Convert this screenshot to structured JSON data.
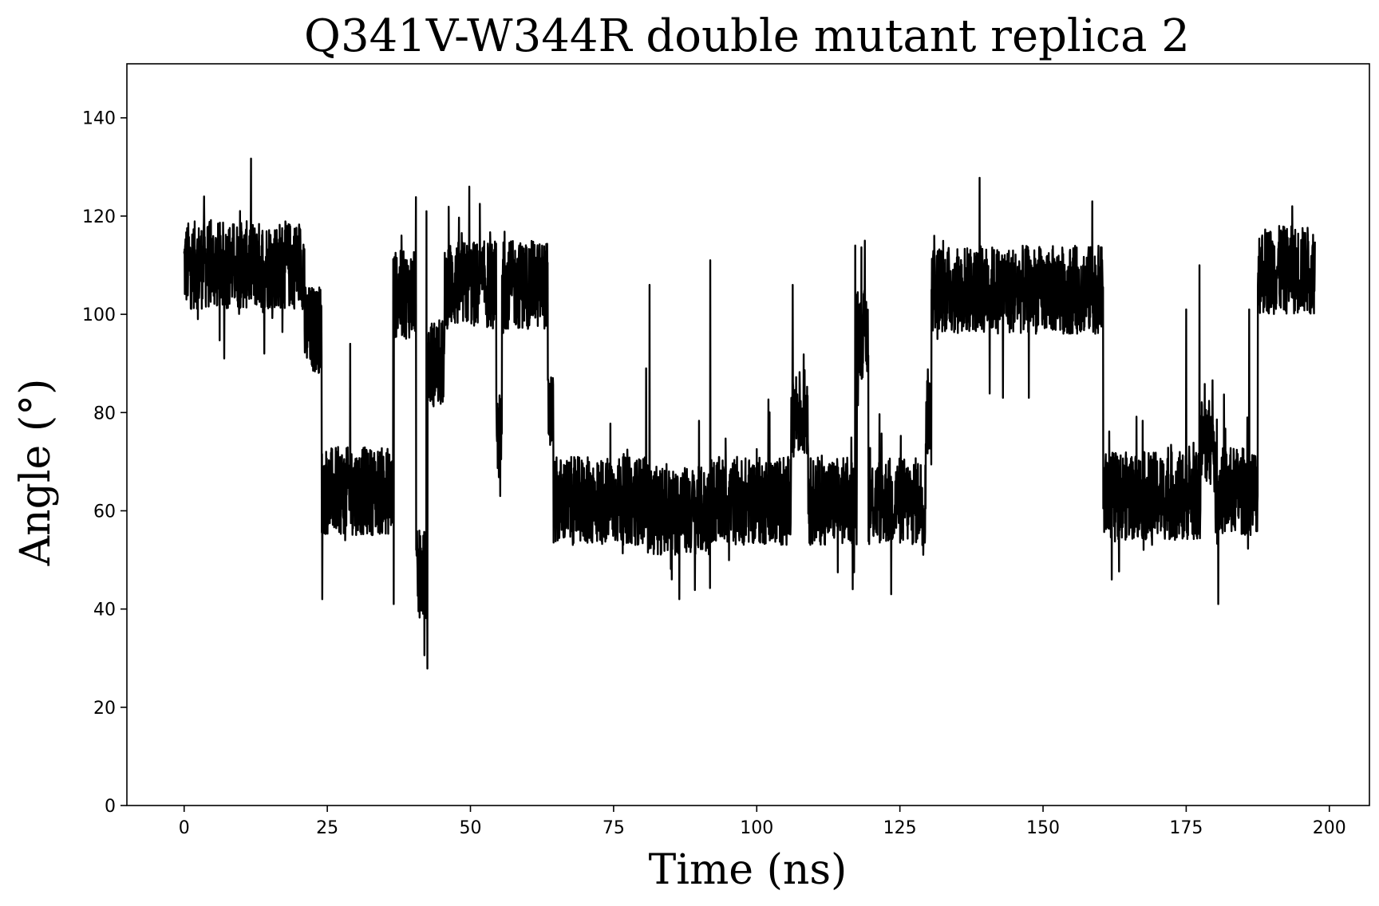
{
  "chart_data": {
    "type": "line",
    "title": "Q341V-W344R double mutant replica 2",
    "xlabel": "Time (ns)",
    "ylabel": "Angle (°)",
    "xlim": [
      -10,
      207
    ],
    "ylim": [
      0,
      151
    ],
    "xticks": [
      0,
      25,
      50,
      75,
      100,
      125,
      150,
      175,
      200
    ],
    "xtick_labels": [
      "0",
      "25",
      "50",
      "75",
      "100",
      "125",
      "150",
      "175",
      "200"
    ],
    "yticks": [
      0,
      20,
      40,
      60,
      80,
      100,
      120,
      140
    ],
    "ytick_labels": [
      "0",
      "20",
      "40",
      "60",
      "80",
      "100",
      "120",
      "140"
    ],
    "grid": false,
    "line_color": "#000000",
    "series": [
      {
        "x_start": 0,
        "x_end": 197.5,
        "noise_amplitude": 9,
        "segments": [
          {
            "from": 0,
            "to": 21,
            "mean": 110
          },
          {
            "from": 21,
            "to": 24,
            "mean": 97
          },
          {
            "from": 24,
            "to": 36.5,
            "mean": 64
          },
          {
            "from": 36.5,
            "to": 40.5,
            "mean": 104
          },
          {
            "from": 40.5,
            "to": 42.5,
            "mean": 47
          },
          {
            "from": 42.5,
            "to": 45.5,
            "mean": 90
          },
          {
            "from": 45.5,
            "to": 54.5,
            "mean": 106
          },
          {
            "from": 54.5,
            "to": 55.5,
            "mean": 75
          },
          {
            "from": 55.5,
            "to": 63.5,
            "mean": 106
          },
          {
            "from": 63.5,
            "to": 64.5,
            "mean": 80
          },
          {
            "from": 64.5,
            "to": 81,
            "mean": 62
          },
          {
            "from": 81,
            "to": 92,
            "mean": 60
          },
          {
            "from": 92,
            "to": 106,
            "mean": 62
          },
          {
            "from": 106,
            "to": 109,
            "mean": 80
          },
          {
            "from": 109,
            "to": 117.5,
            "mean": 62
          },
          {
            "from": 117.5,
            "to": 119.5,
            "mean": 96
          },
          {
            "from": 119.5,
            "to": 129.5,
            "mean": 62
          },
          {
            "from": 129.5,
            "to": 130.5,
            "mean": 80
          },
          {
            "from": 130.5,
            "to": 160.5,
            "mean": 105
          },
          {
            "from": 160.5,
            "to": 177.5,
            "mean": 63
          },
          {
            "from": 177.5,
            "to": 180,
            "mean": 74
          },
          {
            "from": 180,
            "to": 187.5,
            "mean": 64
          },
          {
            "from": 187.5,
            "to": 197.5,
            "mean": 109
          }
        ],
        "spikes": [
          {
            "x": 3.5,
            "y": 124
          },
          {
            "x": 7,
            "y": 91
          },
          {
            "x": 14,
            "y": 92
          },
          {
            "x": 24.1,
            "y": 42
          },
          {
            "x": 29,
            "y": 94
          },
          {
            "x": 36.6,
            "y": 41
          },
          {
            "x": 41.8,
            "y": 42
          },
          {
            "x": 42.3,
            "y": 121
          },
          {
            "x": 49.8,
            "y": 126
          },
          {
            "x": 55.2,
            "y": 63
          },
          {
            "x": 80.7,
            "y": 89
          },
          {
            "x": 81.3,
            "y": 106
          },
          {
            "x": 86.5,
            "y": 42
          },
          {
            "x": 91.9,
            "y": 111
          },
          {
            "x": 106.3,
            "y": 106
          },
          {
            "x": 117.2,
            "y": 114
          },
          {
            "x": 118.9,
            "y": 115
          },
          {
            "x": 123.5,
            "y": 43
          },
          {
            "x": 131,
            "y": 116
          },
          {
            "x": 143,
            "y": 83
          },
          {
            "x": 158.6,
            "y": 123
          },
          {
            "x": 162,
            "y": 46
          },
          {
            "x": 175,
            "y": 101
          },
          {
            "x": 177.3,
            "y": 110
          },
          {
            "x": 180.6,
            "y": 41
          },
          {
            "x": 186,
            "y": 101
          },
          {
            "x": 193.5,
            "y": 122
          }
        ]
      }
    ]
  }
}
